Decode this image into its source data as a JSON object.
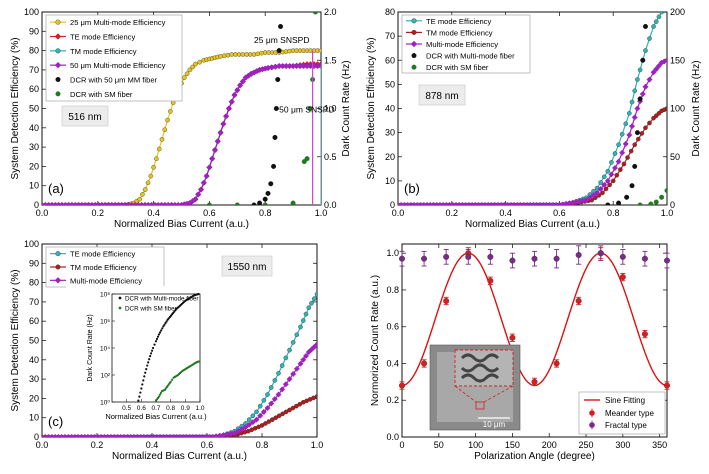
{
  "chart_data": [
    {
      "id": "a",
      "type": "line",
      "panel_label": "(a)",
      "annotation_box": "516 nm",
      "text_annotations": [
        "25 μm SNSPD",
        "50 μm SNSPD"
      ],
      "xlabel": "Normalized Bias Current (a.u.)",
      "ylabel": "System Detection Efficiency (%)",
      "y2label": "Dark Count Rate (Hz)",
      "xlim": [
        0,
        1
      ],
      "ylim": [
        0,
        100
      ],
      "y2lim": [
        0,
        2
      ],
      "x_ticks": [
        0.0,
        0.2,
        0.4,
        0.6,
        0.8,
        1.0
      ],
      "x_tick_labels": [
        "0.0",
        "0.2",
        "0.4",
        "0.6",
        "0.8",
        "1.0"
      ],
      "y_ticks": [
        0,
        10,
        20,
        30,
        40,
        50,
        60,
        70,
        80,
        90,
        100
      ],
      "y_tick_labels": [
        "0",
        "10",
        "20",
        "30",
        "40",
        "50",
        "60",
        "70",
        "80",
        "90",
        "100"
      ],
      "y2_ticks": [
        0,
        0.5,
        1.0,
        1.5,
        2.0
      ],
      "y2_tick_labels": [
        "0.0",
        "0.5",
        "1.0",
        "1.5",
        "2.0"
      ],
      "legend_position": "top-left",
      "series": [
        {
          "name": "25 μm Multi-mode Efficiency",
          "color": "#e8c51c",
          "marker": "circle",
          "axis": "left",
          "x": [
            0.3,
            0.33,
            0.35,
            0.37,
            0.39,
            0.41,
            0.43,
            0.45,
            0.47,
            0.49,
            0.51,
            0.53,
            0.55,
            0.58,
            0.61,
            0.64,
            0.68,
            0.72,
            0.76,
            0.8,
            0.85,
            0.9,
            0.95,
            1.0
          ],
          "values": [
            0,
            1,
            3,
            8,
            15,
            24,
            34,
            44,
            53,
            60,
            66,
            70,
            73,
            75,
            76,
            77,
            78,
            78,
            78,
            79,
            79,
            80,
            80,
            80
          ]
        },
        {
          "name": "TE mode Efficiency",
          "color": "#d81f1f",
          "marker": "diamond",
          "axis": "left",
          "x": [
            0.5,
            0.53,
            0.55,
            0.57,
            0.59,
            0.61,
            0.63,
            0.65,
            0.67,
            0.69,
            0.71,
            0.73,
            0.75,
            0.78,
            0.81,
            0.85,
            0.9,
            0.95,
            1.0
          ],
          "values": [
            0,
            1,
            3,
            8,
            15,
            24,
            33,
            42,
            50,
            57,
            62,
            66,
            68,
            70,
            71,
            72,
            72,
            73,
            73
          ]
        },
        {
          "name": "TM mode Efficiency",
          "color": "#2eb5b5",
          "marker": "circle",
          "axis": "left",
          "x": [
            0.5,
            0.53,
            0.55,
            0.57,
            0.59,
            0.61,
            0.63,
            0.65,
            0.67,
            0.69,
            0.71,
            0.73,
            0.75,
            0.78,
            0.81,
            0.85,
            0.9,
            0.95,
            1.0
          ],
          "values": [
            0,
            1,
            3,
            8,
            15,
            24,
            33,
            42,
            50,
            57,
            62,
            66,
            68,
            70,
            71,
            72,
            72,
            72,
            72
          ]
        },
        {
          "name": "50 μm Multi-mode Efficiency",
          "color": "#a020c0",
          "marker": "diamond",
          "axis": "left",
          "x": [
            0.5,
            0.53,
            0.55,
            0.57,
            0.59,
            0.61,
            0.63,
            0.65,
            0.67,
            0.69,
            0.71,
            0.73,
            0.75,
            0.78,
            0.81,
            0.85,
            0.9,
            0.95,
            1.0
          ],
          "values": [
            0,
            1,
            3,
            8,
            15,
            24,
            33,
            42,
            50,
            57,
            62,
            66,
            68,
            70,
            71,
            72,
            72,
            72,
            72
          ]
        },
        {
          "name": "DCR with 50 μm MM fiber",
          "color": "#111111",
          "marker": "circle",
          "axis": "right",
          "x": [
            0.76,
            0.78,
            0.8,
            0.81,
            0.82,
            0.83,
            0.835,
            0.84,
            0.845,
            0.85,
            0.855
          ],
          "values": [
            0.0,
            0.02,
            0.06,
            0.12,
            0.22,
            0.4,
            0.7,
            1.0,
            1.3,
            1.6,
            1.85
          ]
        },
        {
          "name": "DCR with SM fiber",
          "color": "#1f7a1f",
          "marker": "circle",
          "axis": "right",
          "x": [
            0.6,
            0.7,
            0.8,
            0.9,
            0.94,
            0.95,
            0.96,
            0.97,
            0.98
          ],
          "values": [
            0,
            0,
            0,
            0.02,
            0.45,
            0.48,
            1.0,
            1.3,
            2.0
          ]
        }
      ]
    },
    {
      "id": "b",
      "type": "line",
      "panel_label": "(b)",
      "annotation_box": "878 nm",
      "xlabel": "Normalized Bias Current (a.u.)",
      "ylabel": "System Detection Efficiency (%)",
      "y2label": "Dark Count Rate (Hz)",
      "xlim": [
        0,
        1
      ],
      "ylim": [
        0,
        80
      ],
      "y2lim": [
        0,
        200
      ],
      "x_ticks": [
        0.0,
        0.2,
        0.4,
        0.6,
        0.8,
        1.0
      ],
      "x_tick_labels": [
        "0.0",
        "0.2",
        "0.4",
        "0.6",
        "0.8",
        "1.0"
      ],
      "y_ticks": [
        0,
        10,
        20,
        30,
        40,
        50,
        60,
        70,
        80
      ],
      "y_tick_labels": [
        "0",
        "10",
        "20",
        "30",
        "40",
        "50",
        "60",
        "70",
        "80"
      ],
      "y2_ticks": [
        0,
        50,
        100,
        150,
        200
      ],
      "y2_tick_labels": [
        "0",
        "50",
        "100",
        "150",
        "200"
      ],
      "legend_position": "top-left",
      "series": [
        {
          "name": "TE mode Efficiency",
          "color": "#2eb5b5",
          "marker": "circle",
          "axis": "left",
          "x": [
            0.6,
            0.65,
            0.7,
            0.74,
            0.78,
            0.82,
            0.86,
            0.89,
            0.92,
            0.95,
            0.98,
            1.0
          ],
          "values": [
            0,
            1,
            3,
            7,
            14,
            25,
            38,
            52,
            64,
            74,
            80,
            81
          ]
        },
        {
          "name": "TM mode Efficiency",
          "color": "#b01c1c",
          "marker": "circle",
          "axis": "left",
          "x": [
            0.62,
            0.67,
            0.72,
            0.76,
            0.8,
            0.84,
            0.88,
            0.92,
            0.95,
            0.98,
            1.0
          ],
          "values": [
            0,
            1,
            2,
            5,
            10,
            17,
            25,
            32,
            36,
            39,
            40
          ]
        },
        {
          "name": "Multi-mode Efficiency",
          "color": "#a020c0",
          "marker": "diamond",
          "axis": "left",
          "x": [
            0.6,
            0.65,
            0.7,
            0.74,
            0.78,
            0.82,
            0.86,
            0.89,
            0.92,
            0.95,
            0.98,
            1.0
          ],
          "values": [
            0,
            1,
            2,
            5,
            10,
            18,
            29,
            40,
            49,
            55,
            59,
            60
          ]
        },
        {
          "name": "DCR with Multi-mode fiber",
          "color": "#111111",
          "marker": "circle",
          "axis": "right",
          "x": [
            0.78,
            0.82,
            0.85,
            0.87,
            0.88,
            0.89,
            0.9,
            0.91,
            0.92
          ],
          "values": [
            0,
            2,
            8,
            20,
            40,
            75,
            110,
            150,
            185
          ]
        },
        {
          "name": "DCR with SM fiber",
          "color": "#1f7a1f",
          "marker": "circle",
          "axis": "right",
          "x": [
            0.9,
            0.94,
            0.96,
            0.98,
            1.0
          ],
          "values": [
            0,
            1,
            3,
            8,
            15
          ]
        }
      ]
    },
    {
      "id": "c",
      "type": "line",
      "panel_label": "(c)",
      "annotation_box": "1550 nm",
      "xlabel": "Normalized Bias Current (a.u.)",
      "ylabel": "System Detection Efficiency (%)",
      "xlim": [
        0,
        1
      ],
      "ylim": [
        0,
        100
      ],
      "x_ticks": [
        0.0,
        0.2,
        0.4,
        0.6,
        0.8,
        1.0
      ],
      "x_tick_labels": [
        "0.0",
        "0.2",
        "0.4",
        "0.6",
        "0.8",
        "1.0"
      ],
      "y_ticks": [
        0,
        10,
        20,
        30,
        40,
        50,
        60,
        70,
        80,
        90,
        100
      ],
      "y_tick_labels": [
        "0",
        "10",
        "20",
        "30",
        "40",
        "50",
        "60",
        "70",
        "80",
        "90",
        "100"
      ],
      "legend_position": "top-left",
      "series": [
        {
          "name": "TE mode Efficiency",
          "color": "#2eb5b5",
          "marker": "circle",
          "axis": "left",
          "x": [
            0.62,
            0.66,
            0.7,
            0.74,
            0.78,
            0.82,
            0.86,
            0.9,
            0.94,
            0.97,
            1.0
          ],
          "values": [
            0,
            1,
            3,
            7,
            13,
            22,
            33,
            45,
            57,
            67,
            74
          ]
        },
        {
          "name": "TM mode Efficiency",
          "color": "#b01c1c",
          "marker": "circle",
          "axis": "left",
          "x": [
            0.65,
            0.7,
            0.75,
            0.8,
            0.85,
            0.9,
            0.95,
            1.0
          ],
          "values": [
            0,
            1,
            3,
            6,
            10,
            14,
            18,
            21
          ]
        },
        {
          "name": "Multi-mode Efficiency",
          "color": "#a020c0",
          "marker": "diamond",
          "axis": "left",
          "x": [
            0.62,
            0.66,
            0.7,
            0.74,
            0.78,
            0.82,
            0.86,
            0.9,
            0.94,
            0.97,
            1.0
          ],
          "values": [
            0,
            1,
            2,
            5,
            9,
            15,
            22,
            30,
            38,
            44,
            48
          ]
        }
      ],
      "inset": {
        "xlabel": "Normalized Bias Current (a.u.)",
        "ylabel": "Dark Count Rate (Hz)",
        "xlim": [
          0.4,
          1.0
        ],
        "ylog": [
          0,
          8
        ],
        "x_ticks": [
          0.5,
          0.6,
          0.7,
          0.8,
          0.9,
          1.0
        ],
        "x_tick_labels": [
          "0.5",
          "0.6",
          "0.7",
          "0.8",
          "0.9",
          "1.0"
        ],
        "y_ticks": [
          0,
          2,
          4,
          6,
          8
        ],
        "y_tick_labels": [
          "10⁰",
          "10²",
          "10⁴",
          "10⁶",
          "10⁸"
        ],
        "series": [
          {
            "name": "DCR with Multi-mode fiber",
            "color": "#111111",
            "x": [
              0.58,
              0.6,
              0.62,
              0.64,
              0.66,
              0.68,
              0.7,
              0.72,
              0.75,
              0.78,
              0.81,
              0.84,
              0.87,
              0.9,
              0.93,
              0.96,
              0.99
            ],
            "log_values": [
              0.1,
              1.0,
              1.9,
              2.7,
              3.4,
              4.0,
              4.5,
              5.0,
              5.6,
              6.1,
              6.5,
              6.9,
              7.2,
              7.5,
              7.7,
              7.9,
              8.0
            ]
          },
          {
            "name": "DCR with SM fiber",
            "color": "#1f7a1f",
            "x": [
              0.7,
              0.72,
              0.74,
              0.76,
              0.78,
              0.8,
              0.82,
              0.85,
              0.88,
              0.91,
              0.94,
              0.97,
              0.99
            ],
            "log_values": [
              0.1,
              0.4,
              0.8,
              0.9,
              1.2,
              1.5,
              1.8,
              2.0,
              2.3,
              2.5,
              2.7,
              2.9,
              3.0
            ]
          }
        ]
      }
    },
    {
      "id": "d",
      "type": "scatter",
      "panel_label": "(d)",
      "xlabel": "Polarization Angle (degree)",
      "ylabel": "Normorized Count Rate (a.u.)",
      "xlim": [
        0,
        360
      ],
      "ylim": [
        0,
        1.05
      ],
      "x_ticks": [
        0,
        50,
        100,
        150,
        200,
        250,
        300,
        350
      ],
      "x_tick_labels": [
        "0",
        "50",
        "100",
        "150",
        "200",
        "250",
        "300",
        "350"
      ],
      "y_ticks": [
        0.0,
        0.2,
        0.4,
        0.6,
        0.8,
        1.0
      ],
      "y_tick_labels": [
        "0.0",
        "0.2",
        "0.4",
        "0.6",
        "0.8",
        "1.0"
      ],
      "legend_position": "bottom-right",
      "inset_scale_label": "10 μm",
      "fit": {
        "name": "Sine Fitting",
        "color": "#e01010",
        "min": 0.28,
        "max": 1.0,
        "peak_deg": 90,
        "period_deg": 180
      },
      "series": [
        {
          "name": "Meander type",
          "color": "#d81f1f",
          "x": [
            0,
            30,
            60,
            90,
            120,
            150,
            180,
            210,
            240,
            270,
            300,
            330,
            360
          ],
          "values": [
            0.28,
            0.4,
            0.74,
            1.0,
            0.85,
            0.54,
            0.3,
            0.4,
            0.74,
            1.0,
            0.87,
            0.56,
            0.28
          ],
          "err": [
            0.02,
            0.02,
            0.02,
            0.03,
            0.02,
            0.02,
            0.02,
            0.02,
            0.02,
            0.03,
            0.02,
            0.02,
            0.02
          ]
        },
        {
          "name": "Fractal type",
          "color": "#7a2a8a",
          "x": [
            0,
            30,
            60,
            90,
            120,
            150,
            180,
            210,
            240,
            270,
            300,
            330,
            360
          ],
          "values": [
            0.97,
            0.97,
            0.98,
            0.98,
            0.98,
            0.96,
            0.97,
            0.97,
            0.99,
            1.0,
            0.98,
            0.97,
            0.96
          ],
          "err": [
            0.04,
            0.04,
            0.04,
            0.04,
            0.04,
            0.04,
            0.04,
            0.05,
            0.05,
            0.04,
            0.04,
            0.04,
            0.04
          ]
        }
      ]
    }
  ]
}
